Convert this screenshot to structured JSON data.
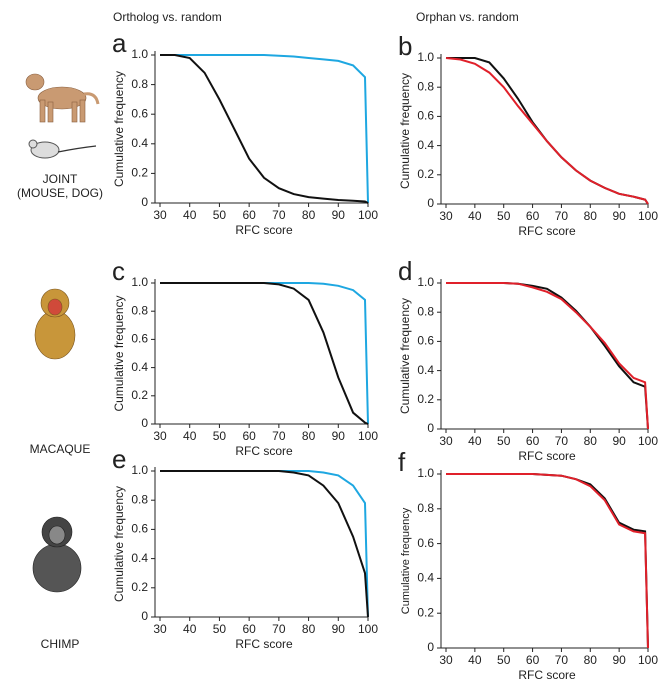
{
  "column_titles": [
    "Ortholog vs. random",
    "Orphan vs. random"
  ],
  "species": [
    {
      "lines": [
        "JOINT",
        "(MOUSE, DOG)"
      ]
    },
    {
      "lines": [
        "MACAQUE"
      ]
    },
    {
      "lines": [
        "CHIMP"
      ]
    }
  ],
  "chart_data": [
    {
      "type": "line",
      "panel": "a",
      "xlabel": "RFC score",
      "ylabel": "Cumulative frequency",
      "x": [
        30,
        35,
        40,
        45,
        50,
        55,
        60,
        65,
        70,
        75,
        80,
        85,
        90,
        95,
        99,
        100
      ],
      "series": [
        {
          "color": "#1ea7e1",
          "values": [
            1,
            1,
            1,
            1,
            1,
            1,
            1,
            1,
            0.995,
            0.99,
            0.98,
            0.97,
            0.96,
            0.93,
            0.85,
            0
          ]
        },
        {
          "color": "#111111",
          "values": [
            1,
            1,
            0.98,
            0.88,
            0.7,
            0.5,
            0.3,
            0.17,
            0.1,
            0.06,
            0.04,
            0.03,
            0.02,
            0.015,
            0.01,
            0
          ]
        }
      ],
      "xlim": [
        30,
        100
      ],
      "ylim": [
        0,
        1
      ],
      "xticks": [
        30,
        40,
        50,
        60,
        70,
        80,
        90,
        100
      ],
      "yticks": [
        0,
        0.2,
        0.4,
        0.6,
        0.8,
        {
          "value": 1,
          "label": "1.0"
        }
      ]
    },
    {
      "type": "line",
      "panel": "b",
      "xlabel": "RFC score",
      "ylabel": "Cumulative frequency",
      "x": [
        30,
        35,
        40,
        45,
        50,
        55,
        60,
        65,
        70,
        75,
        80,
        85,
        90,
        95,
        99,
        100
      ],
      "series": [
        {
          "color": "#111111",
          "values": [
            1,
            1,
            1,
            0.97,
            0.86,
            0.72,
            0.56,
            0.43,
            0.32,
            0.23,
            0.16,
            0.11,
            0.07,
            0.05,
            0.03,
            0
          ]
        },
        {
          "color": "#e0202a",
          "values": [
            1,
            0.99,
            0.96,
            0.9,
            0.8,
            0.67,
            0.55,
            0.43,
            0.32,
            0.23,
            0.16,
            0.11,
            0.07,
            0.05,
            0.03,
            0
          ]
        }
      ],
      "xlim": [
        30,
        100
      ],
      "ylim": [
        0,
        1
      ],
      "xticks": [
        30,
        40,
        50,
        60,
        70,
        80,
        90,
        100
      ],
      "yticks": [
        0,
        0.2,
        0.4,
        0.6,
        0.8,
        {
          "value": 1,
          "label": "1.0"
        }
      ]
    },
    {
      "type": "line",
      "panel": "c",
      "xlabel": "RFC score",
      "ylabel": "Cumulative frequency",
      "x": [
        30,
        35,
        40,
        45,
        50,
        55,
        60,
        65,
        70,
        75,
        80,
        85,
        90,
        95,
        99,
        100
      ],
      "series": [
        {
          "color": "#1ea7e1",
          "values": [
            1,
            1,
            1,
            1,
            1,
            1,
            1,
            1,
            1,
            1,
            1,
            0.995,
            0.98,
            0.95,
            0.88,
            0
          ]
        },
        {
          "color": "#111111",
          "values": [
            1,
            1,
            1,
            1,
            1,
            1,
            1,
            1,
            0.99,
            0.96,
            0.88,
            0.65,
            0.33,
            0.08,
            0.01,
            0
          ]
        }
      ],
      "xlim": [
        30,
        100
      ],
      "ylim": [
        0,
        1
      ],
      "xticks": [
        30,
        40,
        50,
        60,
        70,
        80,
        90,
        100
      ],
      "yticks": [
        0,
        0.2,
        0.4,
        0.6,
        0.8,
        {
          "value": 1,
          "label": "1.0"
        }
      ]
    },
    {
      "type": "line",
      "panel": "d",
      "xlabel": "RFC score",
      "ylabel": "Cumulative frequency",
      "x": [
        30,
        35,
        40,
        45,
        50,
        55,
        60,
        65,
        70,
        75,
        80,
        85,
        90,
        95,
        99,
        100
      ],
      "series": [
        {
          "color": "#111111",
          "values": [
            1,
            1,
            1,
            1,
            1,
            0.995,
            0.98,
            0.96,
            0.9,
            0.81,
            0.7,
            0.57,
            0.43,
            0.32,
            0.29,
            0
          ]
        },
        {
          "color": "#e0202a",
          "values": [
            1,
            1,
            1,
            1,
            1,
            0.995,
            0.97,
            0.94,
            0.89,
            0.8,
            0.7,
            0.59,
            0.45,
            0.35,
            0.32,
            0
          ]
        }
      ],
      "xlim": [
        30,
        100
      ],
      "ylim": [
        0,
        1
      ],
      "xticks": [
        30,
        40,
        50,
        60,
        70,
        80,
        90,
        100
      ],
      "yticks": [
        0,
        0.2,
        0.4,
        0.6,
        0.8,
        {
          "value": 1,
          "label": "1.0"
        }
      ]
    },
    {
      "type": "line",
      "panel": "e",
      "xlabel": "RFC score",
      "ylabel": "Cumulative frequency",
      "x": [
        30,
        35,
        40,
        45,
        50,
        55,
        60,
        65,
        70,
        75,
        80,
        85,
        90,
        95,
        99,
        100
      ],
      "series": [
        {
          "color": "#1ea7e1",
          "values": [
            1,
            1,
            1,
            1,
            1,
            1,
            1,
            1,
            1,
            1,
            1,
            0.99,
            0.97,
            0.9,
            0.78,
            0
          ]
        },
        {
          "color": "#111111",
          "values": [
            1,
            1,
            1,
            1,
            1,
            1,
            1,
            1,
            1,
            0.99,
            0.97,
            0.9,
            0.78,
            0.55,
            0.3,
            0
          ]
        }
      ],
      "xlim": [
        30,
        100
      ],
      "ylim": [
        0,
        1
      ],
      "xticks": [
        30,
        40,
        50,
        60,
        70,
        80,
        90,
        100
      ],
      "yticks": [
        0,
        0.2,
        0.4,
        0.6,
        0.8,
        {
          "value": 1,
          "label": "1.0"
        }
      ]
    },
    {
      "type": "line",
      "panel": "f",
      "xlabel": "RFC score",
      "ylabel": "Cumulative frequency",
      "x": [
        30,
        35,
        40,
        45,
        50,
        55,
        60,
        65,
        70,
        75,
        80,
        85,
        90,
        95,
        99,
        100
      ],
      "series": [
        {
          "color": "#111111",
          "values": [
            1,
            1,
            1,
            1,
            1,
            1,
            1,
            0.995,
            0.99,
            0.97,
            0.94,
            0.86,
            0.72,
            0.68,
            0.67,
            0
          ]
        },
        {
          "color": "#e0202a",
          "values": [
            1,
            1,
            1,
            1,
            1,
            1,
            1,
            0.995,
            0.99,
            0.97,
            0.93,
            0.85,
            0.71,
            0.67,
            0.66,
            0
          ]
        }
      ],
      "xlim": [
        30,
        100
      ],
      "ylim": [
        0,
        1
      ],
      "xticks": [
        30,
        40,
        50,
        60,
        70,
        80,
        90,
        100
      ],
      "yticks": [
        0,
        0.2,
        0.4,
        0.6,
        0.8,
        {
          "value": 1,
          "label": "1.0"
        }
      ]
    }
  ]
}
